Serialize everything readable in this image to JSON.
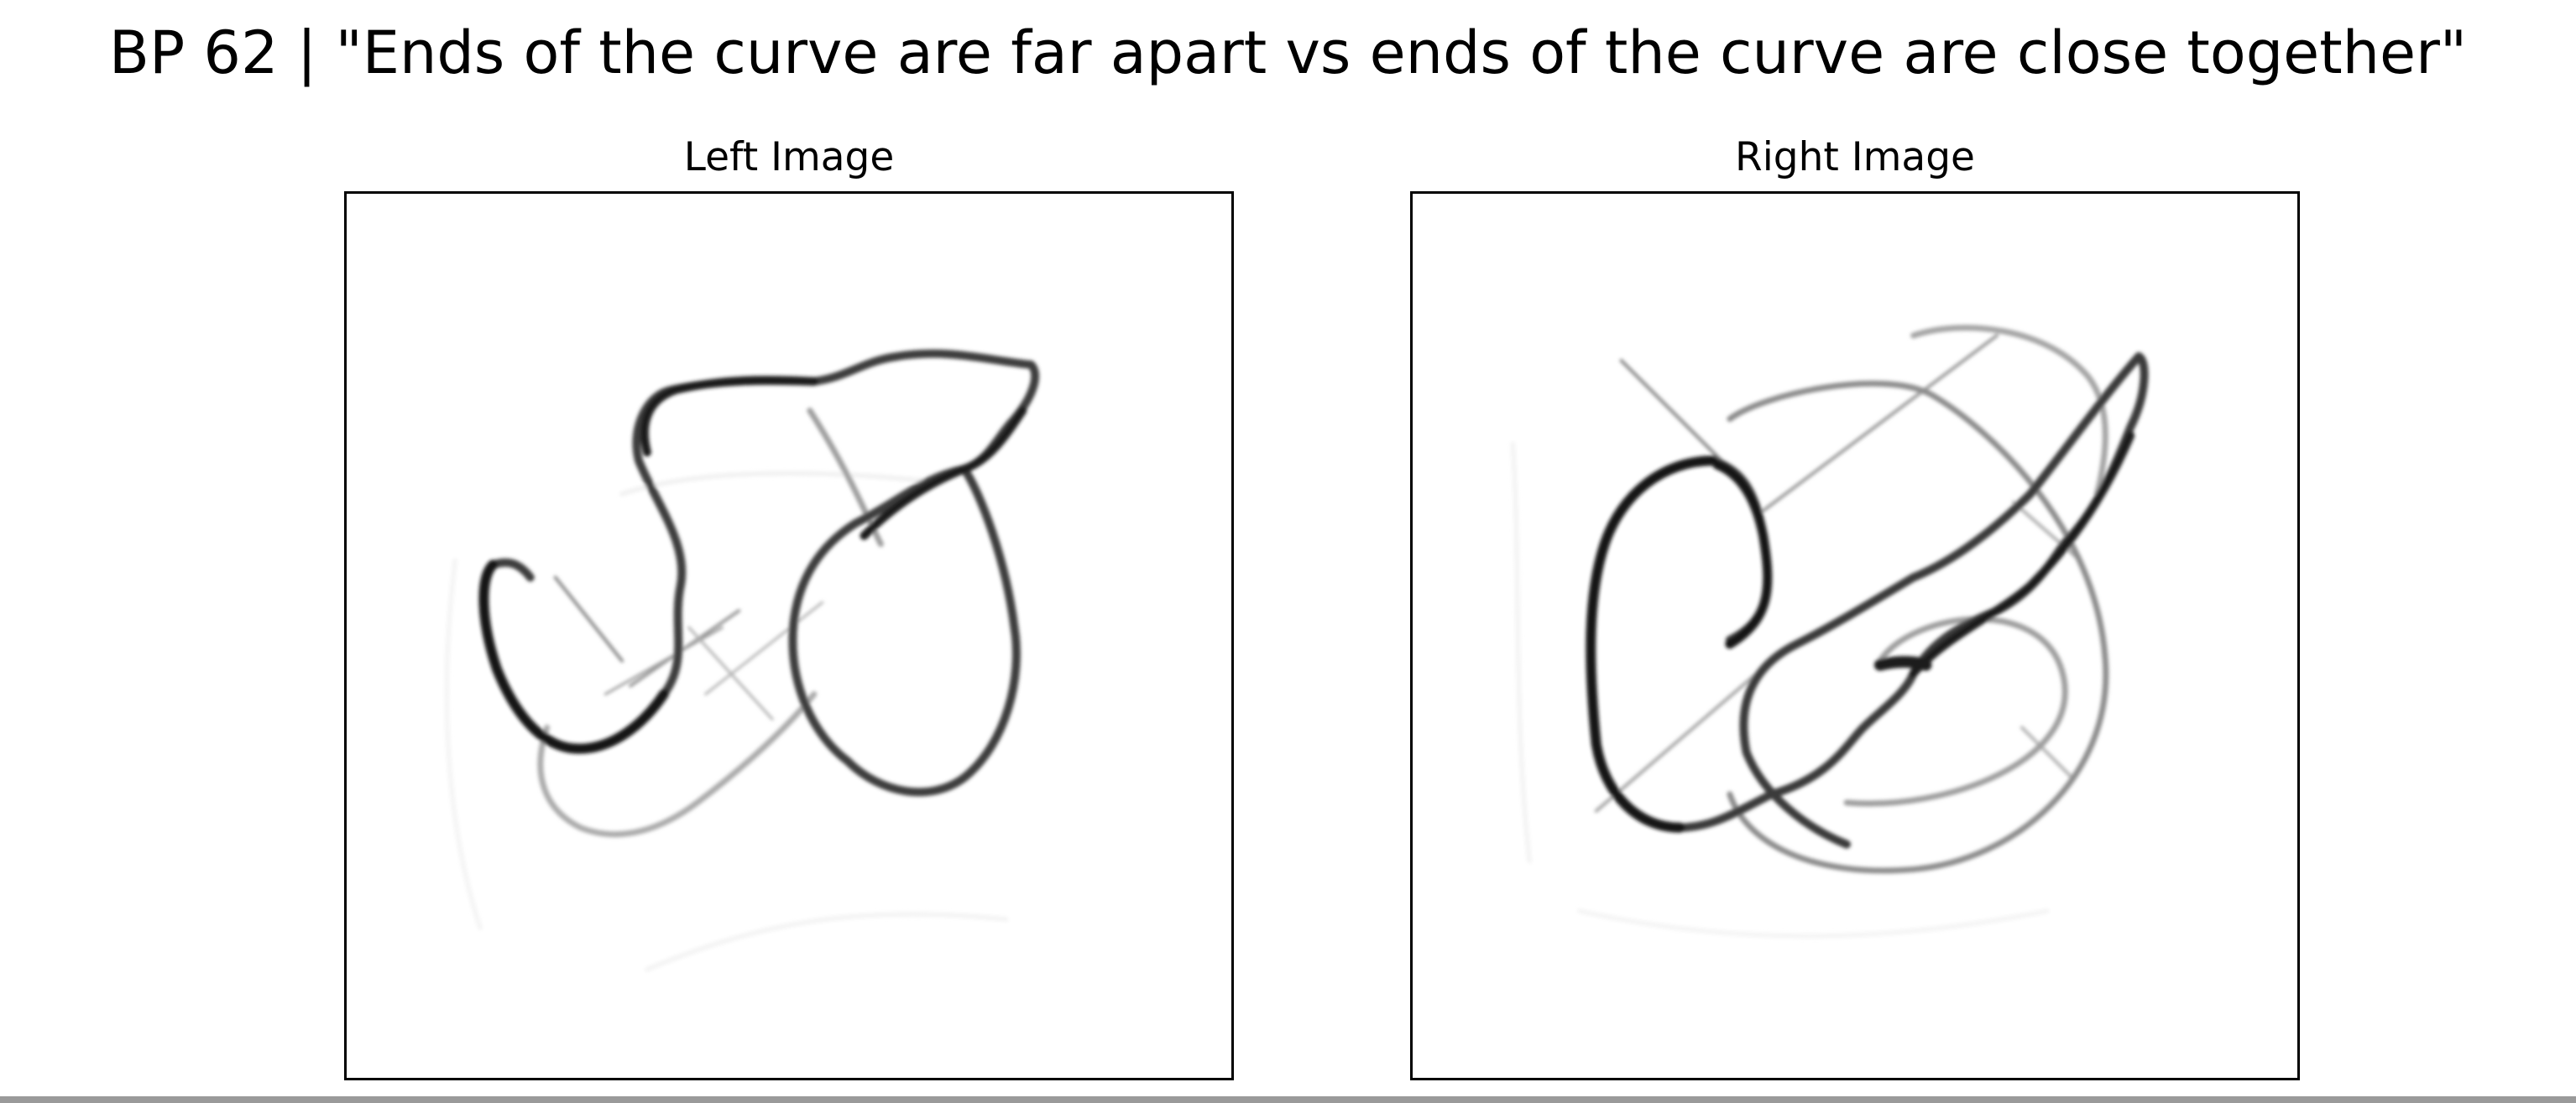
{
  "figure": {
    "title": "BP 62 | \"Ends of the curve are far apart vs ends of the curve are close together\""
  },
  "panels": {
    "left": {
      "title": "Left Image"
    },
    "right": {
      "title": "Right Image"
    }
  }
}
